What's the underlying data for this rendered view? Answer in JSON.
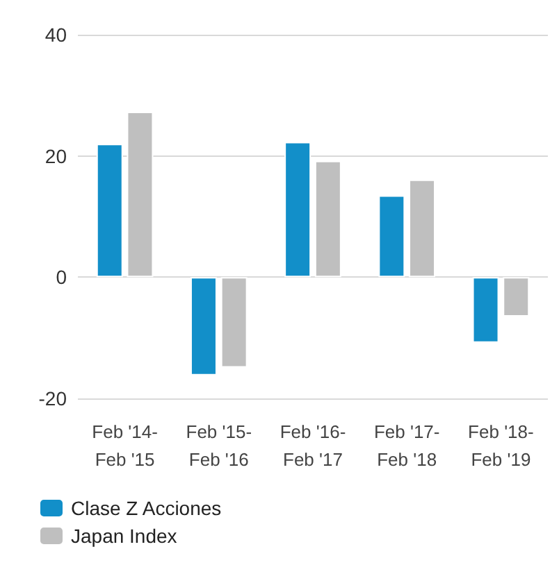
{
  "chart_data": {
    "type": "bar",
    "categories": [
      "Feb '14-\nFeb '15",
      "Feb '15-\nFeb '16",
      "Feb '16-\nFeb '17",
      "Feb '17-\nFeb '18",
      "Feb '18-\nFeb '19"
    ],
    "series": [
      {
        "name": "Clase Z Acciones",
        "color": "#128fc9",
        "values": [
          22.0,
          -16.2,
          22.3,
          13.5,
          -10.8
        ]
      },
      {
        "name": "Japan Index",
        "color": "#bfbfbf",
        "values": [
          27.3,
          -14.9,
          19.2,
          16.1,
          -6.5
        ]
      }
    ],
    "ylim": [
      -20,
      40
    ],
    "yticks": [
      -20,
      0,
      20,
      40
    ],
    "grid": "y",
    "legend": "bottom left"
  }
}
